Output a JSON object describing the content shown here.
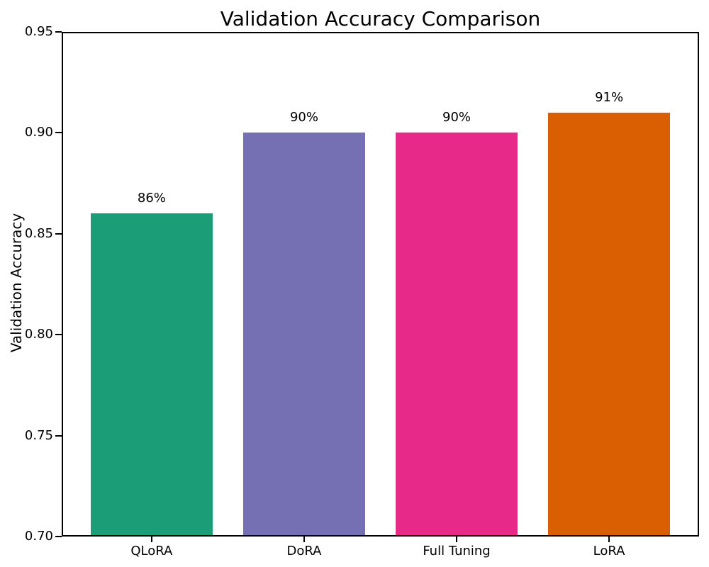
{
  "chart_data": {
    "type": "bar",
    "title": "Validation Accuracy Comparison",
    "xlabel": "",
    "ylabel": "Validation Accuracy",
    "categories": [
      "QLoRA",
      "DoRA",
      "Full Tuning",
      "LoRA"
    ],
    "values": [
      0.86,
      0.9,
      0.9,
      0.91
    ],
    "bar_labels": [
      "86%",
      "90%",
      "90%",
      "91%"
    ],
    "bar_colors": [
      "#1b9e77",
      "#7570b3",
      "#e7298a",
      "#d95f02"
    ],
    "ylim": [
      0.7,
      0.95
    ],
    "yticks": [
      0.7,
      0.75,
      0.8,
      0.85,
      0.9,
      0.95
    ],
    "ytick_labels": [
      "0.70",
      "0.75",
      "0.80",
      "0.85",
      "0.90",
      "0.95"
    ],
    "xlim": [
      -0.59,
      3.59
    ],
    "bar_width": 0.8,
    "grid": false,
    "legend": "none",
    "background_color": "#ffffff",
    "spine_color": "#000000",
    "text_color": "#000000"
  }
}
